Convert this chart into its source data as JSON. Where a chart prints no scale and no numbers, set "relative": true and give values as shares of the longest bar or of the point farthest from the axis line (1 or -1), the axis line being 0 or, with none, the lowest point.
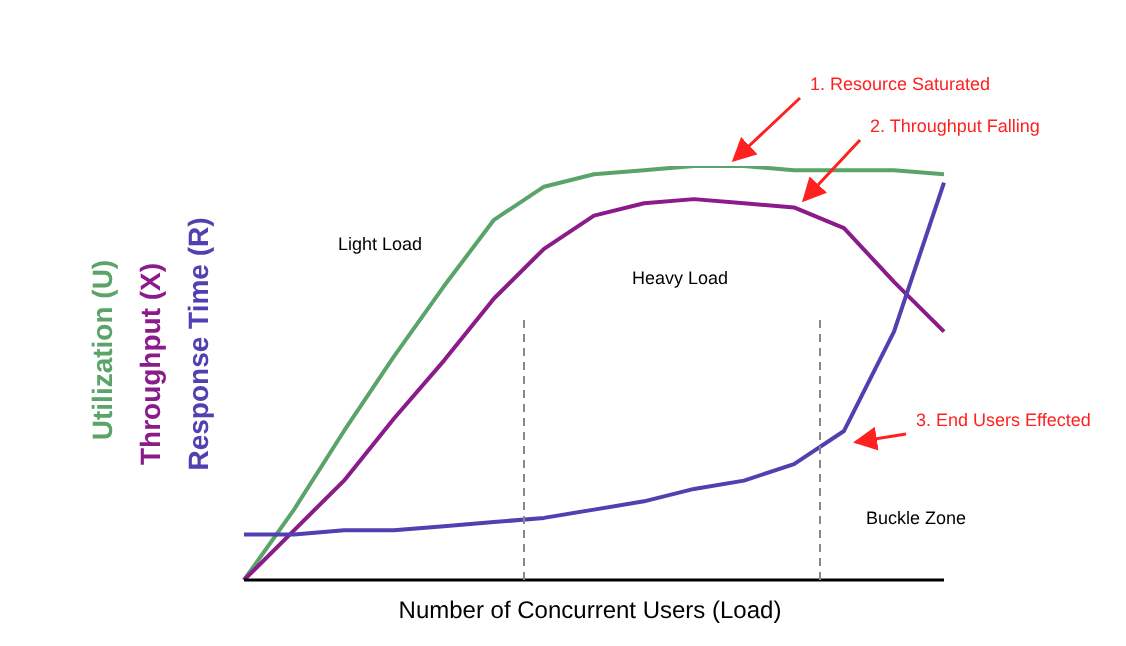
{
  "chart_data": {
    "type": "line",
    "relative": true,
    "xlabel": "Number of  Concurrent Users (Load)",
    "categories": [
      null,
      null,
      null,
      null,
      null,
      null,
      null,
      null,
      null,
      null,
      null,
      null,
      null,
      null,
      null
    ],
    "line_style": "solid",
    "series": [
      {
        "name": "Utilization (U)",
        "color": "#5aa469",
        "values": [
          0,
          0.17,
          0.36,
          0.54,
          0.71,
          0.87,
          0.95,
          0.98,
          0.99,
          1,
          1,
          0.99,
          0.99,
          0.99,
          0.98
        ]
      },
      {
        "name": "Throughput (X)",
        "color": "#8b1a8b",
        "values": [
          0,
          0.12,
          0.24,
          0.39,
          0.53,
          0.68,
          0.8,
          0.88,
          0.91,
          0.92,
          0.91,
          0.9,
          0.85,
          0.72,
          0.6
        ]
      },
      {
        "name": "Response Time (R)",
        "color": "#5040b0",
        "values": [
          0.11,
          0.11,
          0.12,
          0.12,
          0.13,
          0.14,
          0.15,
          0.17,
          0.19,
          0.22,
          0.24,
          0.28,
          0.36,
          0.6,
          0.96
        ]
      }
    ],
    "ref_lines": [
      {
        "axis": "x",
        "color": "#888888",
        "line_style": "dashed"
      },
      {
        "axis": "x",
        "color": "#888888",
        "line_style": "dashed"
      }
    ],
    "annotations": [
      "Light Load",
      "Heavy Load",
      "Buckle Zone",
      "1. Resource Saturated",
      "2. Throughput Falling",
      "3. End Users Effected"
    ]
  }
}
